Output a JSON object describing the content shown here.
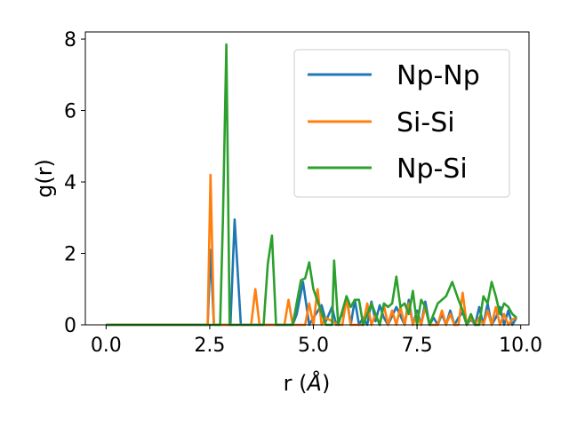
{
  "chart_data": {
    "type": "line",
    "xlabel": "r (",
    "xlabel_unit": "Å",
    "xlabel_close": ")",
    "ylabel": "g(r)",
    "xlim": [
      -0.5,
      10.2
    ],
    "ylim": [
      0,
      8.2
    ],
    "xticks": [
      0.0,
      2.5,
      5.0,
      7.5,
      10.0
    ],
    "xtick_labels": [
      "0.0",
      "2.5",
      "5.0",
      "7.5",
      "10.0"
    ],
    "yticks": [
      0,
      2,
      4,
      6,
      8
    ],
    "ytick_labels": [
      "0",
      "2",
      "4",
      "6",
      "8"
    ],
    "grid": false,
    "legend_position": "top-right",
    "series": [
      {
        "name": "Np-Np",
        "color": "#1f77b4",
        "x": [
          0.0,
          2.4,
          2.45,
          2.52,
          2.6,
          2.8,
          3.0,
          3.1,
          3.25,
          4.5,
          4.6,
          4.75,
          4.9,
          5.0,
          5.2,
          5.3,
          5.45,
          5.55,
          5.7,
          5.8,
          5.9,
          6.0,
          6.1,
          6.2,
          6.3,
          6.4,
          6.5,
          6.6,
          6.7,
          6.8,
          7.0,
          7.2,
          7.3,
          7.4,
          7.5,
          7.6,
          7.7,
          7.8,
          7.9,
          8.0,
          8.1,
          8.2,
          8.3,
          8.4,
          8.5,
          8.6,
          8.7,
          8.8,
          8.9,
          9.0,
          9.1,
          9.2,
          9.3,
          9.4,
          9.5,
          9.6,
          9.7,
          9.8,
          9.9
        ],
        "y": [
          0.0,
          0.0,
          0.0,
          2.1,
          0.0,
          0.0,
          0.0,
          2.95,
          0.0,
          0.0,
          0.3,
          1.2,
          0.0,
          0.2,
          0.55,
          0.1,
          0.5,
          0.0,
          0.3,
          0.8,
          0.0,
          0.7,
          0.0,
          0.2,
          0.0,
          0.65,
          0.1,
          0.55,
          0.2,
          0.0,
          0.5,
          0.0,
          0.7,
          0.0,
          0.4,
          0.0,
          0.65,
          0.0,
          0.2,
          0.0,
          0.3,
          0.0,
          0.4,
          0.0,
          0.2,
          0.35,
          0.0,
          0.15,
          0.0,
          0.5,
          0.0,
          0.6,
          0.0,
          0.2,
          0.5,
          0.0,
          0.4,
          0.0,
          0.2
        ]
      },
      {
        "name": "Si-Si",
        "color": "#ff7f0e",
        "x": [
          0.0,
          2.4,
          2.45,
          2.52,
          2.6,
          3.5,
          3.6,
          3.7,
          4.3,
          4.4,
          4.5,
          4.8,
          4.9,
          5.0,
          5.1,
          5.2,
          5.3,
          5.6,
          5.7,
          5.8,
          5.9,
          6.2,
          6.3,
          6.4,
          6.5,
          6.6,
          6.7,
          6.8,
          6.9,
          7.0,
          7.1,
          7.2,
          7.3,
          7.4,
          7.5,
          7.6,
          7.7,
          7.8,
          7.9,
          8.0,
          8.1,
          8.2,
          8.3,
          8.4,
          8.5,
          8.6,
          8.7,
          8.8,
          8.9,
          9.0,
          9.1,
          9.2,
          9.3,
          9.4,
          9.5,
          9.6,
          9.7,
          9.8,
          9.9
        ],
        "y": [
          0.0,
          0.0,
          0.0,
          4.2,
          0.0,
          0.0,
          1.0,
          0.0,
          0.0,
          0.7,
          0.0,
          0.0,
          0.6,
          0.0,
          1.0,
          0.0,
          0.2,
          0.0,
          0.0,
          0.75,
          0.0,
          0.0,
          0.6,
          0.0,
          0.3,
          0.0,
          0.55,
          0.0,
          0.4,
          0.0,
          0.5,
          0.0,
          0.6,
          0.0,
          0.3,
          0.0,
          0.5,
          0.0,
          0.0,
          0.0,
          0.4,
          0.0,
          0.3,
          0.0,
          0.0,
          0.9,
          0.0,
          0.2,
          0.0,
          0.2,
          0.0,
          0.4,
          0.0,
          0.5,
          0.0,
          0.3,
          0.0,
          0.15,
          0.2
        ]
      },
      {
        "name": "Np-Si",
        "color": "#2ca02c",
        "x": [
          0.0,
          2.75,
          2.82,
          2.9,
          2.98,
          3.1,
          3.8,
          3.9,
          4.0,
          4.1,
          4.5,
          4.7,
          4.8,
          4.9,
          5.0,
          5.3,
          5.45,
          5.5,
          5.6,
          5.8,
          5.9,
          6.0,
          6.1,
          6.2,
          6.3,
          6.4,
          6.5,
          6.6,
          6.7,
          6.8,
          6.9,
          7.0,
          7.1,
          7.2,
          7.3,
          7.4,
          7.5,
          7.6,
          7.7,
          7.8,
          8.0,
          8.2,
          8.35,
          8.5,
          8.6,
          8.7,
          8.8,
          8.9,
          9.0,
          9.1,
          9.2,
          9.3,
          9.4,
          9.5,
          9.6,
          9.7,
          9.8,
          9.9
        ],
        "y": [
          0.0,
          0.0,
          3.0,
          7.85,
          0.0,
          0.0,
          0.0,
          1.7,
          2.5,
          0.0,
          0.0,
          1.25,
          1.3,
          1.75,
          1.0,
          0.0,
          0.0,
          1.8,
          0.0,
          0.8,
          0.5,
          0.7,
          0.7,
          0.0,
          0.3,
          0.6,
          0.3,
          0.0,
          0.6,
          0.5,
          0.6,
          1.35,
          0.5,
          0.6,
          0.3,
          0.95,
          0.0,
          0.7,
          0.5,
          0.0,
          0.6,
          0.8,
          1.2,
          0.7,
          0.4,
          0.0,
          0.3,
          0.0,
          0.0,
          0.8,
          0.6,
          1.2,
          0.8,
          0.3,
          0.6,
          0.5,
          0.3,
          0.2
        ]
      }
    ]
  }
}
